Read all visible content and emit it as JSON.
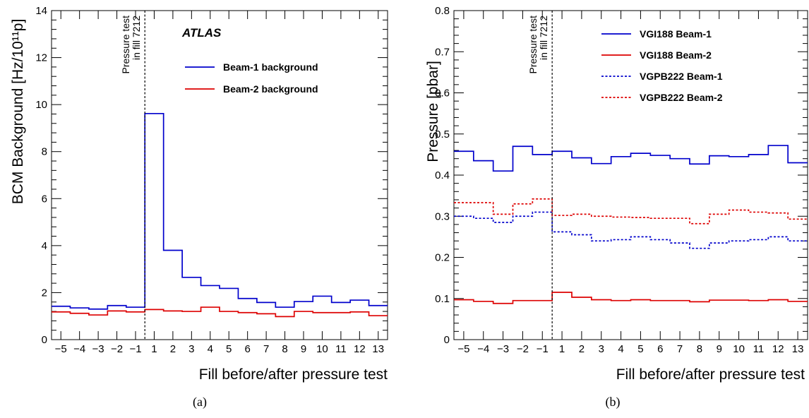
{
  "chart_data": [
    {
      "type": "step",
      "panel_label": "(a)",
      "experiment_label": "ATLAS",
      "xlabel": "Fill before/after pressure test",
      "ylabel": "BCM Background [Hz/10¹¹p]",
      "x_categories": [
        "−5",
        "−4",
        "−3",
        "−2",
        "−1",
        "1",
        "2",
        "3",
        "4",
        "5",
        "6",
        "7",
        "8",
        "9",
        "10",
        "11",
        "12",
        "13"
      ],
      "ylim": [
        0,
        14
      ],
      "yticks": [
        0,
        2,
        4,
        6,
        8,
        10,
        12,
        14
      ],
      "legend_position": "top-right",
      "annotation": {
        "lines": [
          "Pressure test",
          "in fill 7212"
        ],
        "at_boundary_between": [
          "−1",
          "1"
        ]
      },
      "series": [
        {
          "name": "Beam-1 background",
          "color": "#0000cc",
          "dashed": false,
          "values": [
            1.42,
            1.35,
            1.3,
            1.45,
            1.38,
            9.62,
            3.8,
            2.65,
            2.3,
            2.18,
            1.75,
            1.58,
            1.38,
            1.62,
            1.85,
            1.58,
            1.68,
            1.45
          ]
        },
        {
          "name": "Beam-2 background",
          "color": "#dd0000",
          "dashed": false,
          "values": [
            1.18,
            1.12,
            1.05,
            1.22,
            1.18,
            1.28,
            1.22,
            1.2,
            1.38,
            1.2,
            1.15,
            1.1,
            0.98,
            1.2,
            1.15,
            1.15,
            1.18,
            1.02
          ]
        }
      ]
    },
    {
      "type": "step",
      "panel_label": "(b)",
      "xlabel": "Fill before/after pressure test",
      "ylabel": "Pressure [pbar]",
      "x_categories": [
        "−5",
        "−4",
        "−3",
        "−2",
        "−1",
        "1",
        "2",
        "3",
        "4",
        "5",
        "6",
        "7",
        "8",
        "9",
        "10",
        "11",
        "12",
        "13"
      ],
      "ylim": [
        0,
        0.8
      ],
      "yticks": [
        "0",
        "0.1",
        "0.2",
        "0.3",
        "0.4",
        "0.5",
        "0.6",
        "0.7",
        "0.8"
      ],
      "legend_position": "top-right",
      "annotation": {
        "lines": [
          "Pressure test",
          "in fill 7212"
        ],
        "at_boundary_between": [
          "−1",
          "1"
        ]
      },
      "series": [
        {
          "name": "VGI188 Beam-1",
          "color": "#0000cc",
          "dashed": false,
          "values": [
            0.458,
            0.435,
            0.41,
            0.47,
            0.45,
            0.458,
            0.442,
            0.428,
            0.445,
            0.453,
            0.448,
            0.44,
            0.427,
            0.447,
            0.445,
            0.45,
            0.472,
            0.43
          ]
        },
        {
          "name": "VGI188 Beam-2",
          "color": "#dd0000",
          "dashed": false,
          "values": [
            0.097,
            0.093,
            0.088,
            0.095,
            0.095,
            0.115,
            0.103,
            0.097,
            0.095,
            0.097,
            0.095,
            0.095,
            0.092,
            0.096,
            0.096,
            0.095,
            0.097,
            0.093
          ]
        },
        {
          "name": "VGPB222 Beam-1",
          "color": "#0000cc",
          "dashed": true,
          "values": [
            0.3,
            0.295,
            0.285,
            0.3,
            0.31,
            0.262,
            0.255,
            0.24,
            0.243,
            0.25,
            0.243,
            0.235,
            0.222,
            0.235,
            0.24,
            0.243,
            0.25,
            0.24
          ]
        },
        {
          "name": "VGPB222 Beam-2",
          "color": "#dd0000",
          "dashed": true,
          "values": [
            0.333,
            0.333,
            0.305,
            0.33,
            0.342,
            0.302,
            0.305,
            0.3,
            0.298,
            0.297,
            0.295,
            0.295,
            0.282,
            0.305,
            0.315,
            0.31,
            0.308,
            0.293
          ]
        }
      ]
    }
  ]
}
